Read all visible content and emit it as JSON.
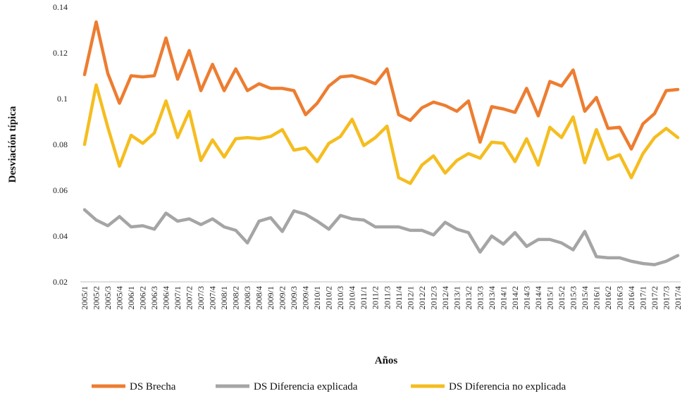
{
  "chart_data": {
    "type": "line",
    "title": "",
    "xlabel": "Años",
    "ylabel": "Desviación típica",
    "ylim": [
      0.02,
      0.14
    ],
    "yticks": [
      0.02,
      0.04,
      0.06,
      0.08,
      0.1,
      0.12,
      0.14
    ],
    "ytick_labels": [
      "0.02",
      "0.04",
      "0.06",
      "0.08",
      "0.1",
      "0.12",
      "0.14"
    ],
    "grid": false,
    "legend_position": "bottom",
    "categories": [
      "2005/1",
      "2005/2",
      "2005/3",
      "2005/4",
      "2006/1",
      "2006/2",
      "2006/3",
      "2006/4",
      "2007/1",
      "2007/2",
      "2007/3",
      "2007/4",
      "2008/1",
      "2008/2",
      "2008/3",
      "2008/4",
      "2009/1",
      "2009/2",
      "2009/3",
      "2009/4",
      "2010/1",
      "2010/2",
      "2010/3",
      "2010/4",
      "2011/1",
      "2011/2",
      "2011/3",
      "2011/4",
      "2012/1",
      "2012/2",
      "2012/3",
      "2012/4",
      "2013/1",
      "2013/2",
      "2013/3",
      "2013/4",
      "2014/1",
      "2014/2",
      "2014/3",
      "2014/4",
      "2015/1",
      "2015/2",
      "2015/3",
      "2015/4",
      "2016/1",
      "2016/2",
      "2016/3",
      "2016/4",
      "2017/1",
      "2017/2",
      "2017/3",
      "2017/4"
    ],
    "series": [
      {
        "name": "DS Brecha",
        "color": "#ED7D31",
        "values": [
          0.1105,
          0.1335,
          0.111,
          0.098,
          0.11,
          0.1095,
          0.11,
          0.1265,
          0.1085,
          0.121,
          0.1035,
          0.115,
          0.1035,
          0.113,
          0.1035,
          0.1065,
          0.1045,
          0.1045,
          0.1035,
          0.093,
          0.098,
          0.1055,
          0.1095,
          0.11,
          0.1085,
          0.1065,
          0.113,
          0.093,
          0.0905,
          0.096,
          0.0985,
          0.097,
          0.0945,
          0.099,
          0.081,
          0.0965,
          0.0955,
          0.094,
          0.1045,
          0.0925,
          0.1075,
          0.1055,
          0.1125,
          0.0945,
          0.1005,
          0.087,
          0.0875,
          0.078,
          0.089,
          0.0935,
          0.1035,
          0.104
        ]
      },
      {
        "name": "DS Diferencia explicada",
        "color": "#A5A5A5",
        "values": [
          0.0515,
          0.047,
          0.0445,
          0.0485,
          0.044,
          0.0445,
          0.043,
          0.05,
          0.0465,
          0.0475,
          0.045,
          0.0475,
          0.044,
          0.0425,
          0.037,
          0.0465,
          0.048,
          0.042,
          0.051,
          0.0495,
          0.0465,
          0.043,
          0.049,
          0.0475,
          0.047,
          0.044,
          0.044,
          0.044,
          0.0425,
          0.0425,
          0.0405,
          0.046,
          0.043,
          0.0415,
          0.033,
          0.04,
          0.0365,
          0.0415,
          0.0355,
          0.0385,
          0.0385,
          0.037,
          0.034,
          0.042,
          0.031,
          0.0305,
          0.0305,
          0.029,
          0.028,
          0.0275,
          0.029,
          0.0315
        ]
      },
      {
        "name": "DS Diferencia no explicada",
        "color": "#F5BD1F",
        "values": [
          0.08,
          0.106,
          0.0875,
          0.0705,
          0.084,
          0.0805,
          0.085,
          0.099,
          0.083,
          0.0945,
          0.073,
          0.082,
          0.0745,
          0.0825,
          0.083,
          0.0825,
          0.0835,
          0.0865,
          0.0775,
          0.0785,
          0.0725,
          0.0805,
          0.0835,
          0.091,
          0.0795,
          0.083,
          0.088,
          0.0655,
          0.063,
          0.071,
          0.075,
          0.0675,
          0.073,
          0.076,
          0.074,
          0.081,
          0.0805,
          0.0725,
          0.0825,
          0.071,
          0.0875,
          0.083,
          0.092,
          0.072,
          0.0865,
          0.0735,
          0.0755,
          0.0655,
          0.076,
          0.083,
          0.087,
          0.083
        ]
      }
    ]
  }
}
